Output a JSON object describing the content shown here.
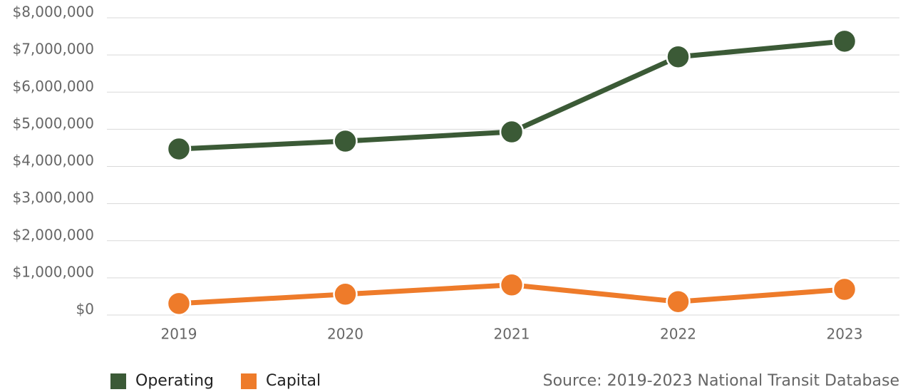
{
  "chart_data": {
    "type": "line",
    "categories": [
      "2019",
      "2020",
      "2021",
      "2022",
      "2023"
    ],
    "series": [
      {
        "name": "Operating",
        "color": "#3b5a36",
        "values": [
          4470000,
          4680000,
          4930000,
          6950000,
          7370000
        ]
      },
      {
        "name": "Capital",
        "color": "#ee7b2a",
        "values": [
          310000,
          560000,
          810000,
          360000,
          690000
        ]
      }
    ],
    "ylim": [
      0,
      8000000
    ],
    "yticks": [
      {
        "value": 0,
        "label": "$0"
      },
      {
        "value": 1000000,
        "label": "$1,000,000"
      },
      {
        "value": 2000000,
        "label": "$2,000,000"
      },
      {
        "value": 3000000,
        "label": "$3,000,000"
      },
      {
        "value": 4000000,
        "label": "$4,000,000"
      },
      {
        "value": 5000000,
        "label": "$5,000,000"
      },
      {
        "value": 6000000,
        "label": "$6,000,000"
      },
      {
        "value": 7000000,
        "label": "$7,000,000"
      },
      {
        "value": 8000000,
        "label": "$8,000,000"
      }
    ],
    "grid": true,
    "legend": "bottom-left",
    "annotation": "Source: 2019-2023 National Transit Database"
  }
}
